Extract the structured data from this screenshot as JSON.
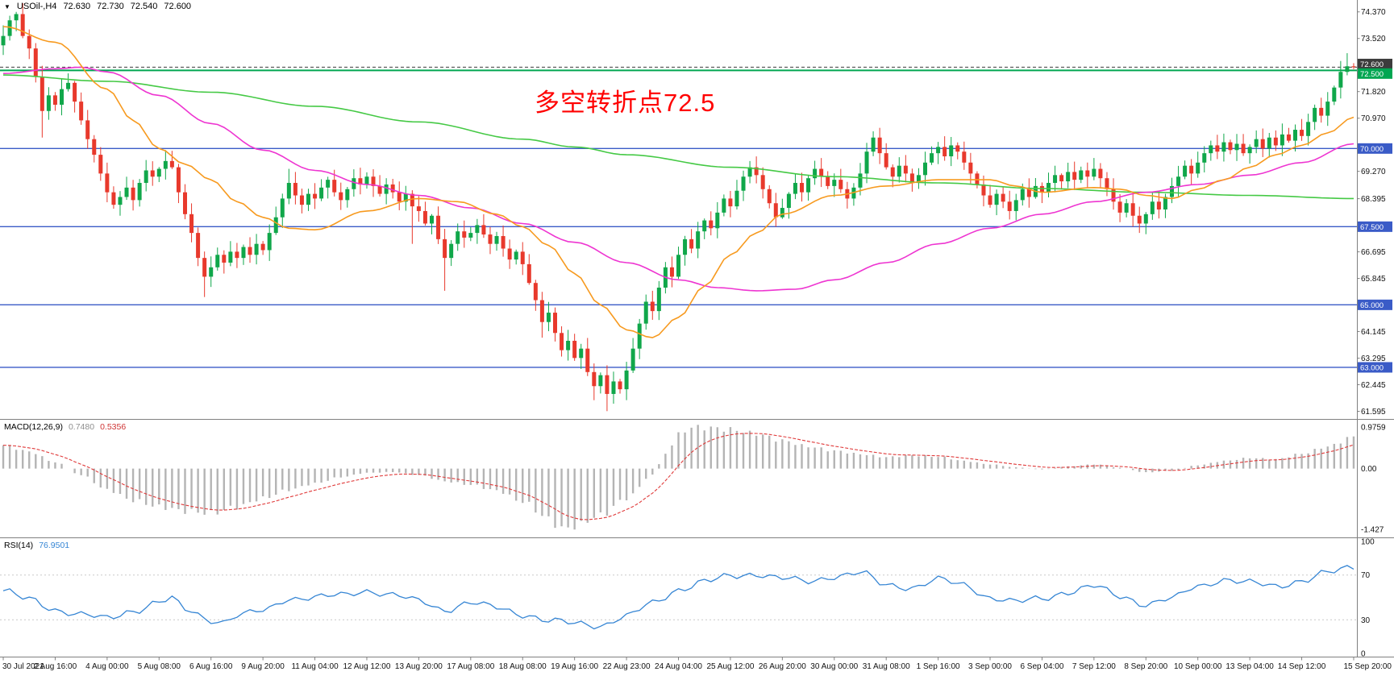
{
  "header": {
    "dropdown_icon": "▼",
    "symbol": "USOil-,H4",
    "open": "72.630",
    "high": "72.730",
    "low": "72.540",
    "close": "72.600"
  },
  "annotation": {
    "text": "多空转折点72.5",
    "color": "#ff0000"
  },
  "colors": {
    "bull": "#10a74a",
    "bear": "#e8392c",
    "macd_hist": "#b4b4b4",
    "macd_signal": "#e03a3a",
    "rsi_line": "#3585d4",
    "hline_blue": "#3a5bc7",
    "hline_green": "#00a651",
    "current_price": "#3c3c3c"
  },
  "price_pane": {
    "scale_labels": [
      {
        "text": "74.370",
        "value": 74.37
      },
      {
        "text": "73.520",
        "value": 73.52
      },
      {
        "text": "71.820",
        "value": 71.82
      },
      {
        "text": "70.970",
        "value": 70.97
      },
      {
        "text": "69.270",
        "value": 69.27
      },
      {
        "text": "68.395",
        "value": 68.395
      },
      {
        "text": "66.695",
        "value": 66.695
      },
      {
        "text": "65.845",
        "value": 65.845
      },
      {
        "text": "64.145",
        "value": 64.145
      },
      {
        "text": "63.295",
        "value": 63.295
      },
      {
        "text": "62.445",
        "value": 62.445
      },
      {
        "text": "61.595",
        "value": 61.595
      }
    ],
    "tags": [
      {
        "text": "72.600",
        "value": 72.6,
        "color": "#3c3c3c",
        "dy": -4
      },
      {
        "text": "72.500",
        "value": 72.5,
        "color": "#00a651",
        "dy": 4
      },
      {
        "text": "70.000",
        "value": 70.0,
        "color": "#3a5bc7",
        "dy": 0
      },
      {
        "text": "67.500",
        "value": 67.5,
        "color": "#3a5bc7",
        "dy": 0
      },
      {
        "text": "65.000",
        "value": 65.0,
        "color": "#3a5bc7",
        "dy": 0
      },
      {
        "text": "63.000",
        "value": 63.0,
        "color": "#3a5bc7",
        "dy": 0
      }
    ]
  },
  "macd_pane": {
    "label": "MACD(12,26,9)",
    "main_value": "0.7480",
    "signal_value": "0.5356",
    "scale_labels": [
      {
        "text": "0.9759",
        "value": 0.9759
      },
      {
        "text": "0.00",
        "value": 0
      },
      {
        "text": "-1.427",
        "value": -1.427
      }
    ]
  },
  "rsi_pane": {
    "label": "RSI(14)",
    "value": "76.9501",
    "levels": [
      70,
      30
    ],
    "scale_labels": [
      {
        "text": "100",
        "value": 100
      },
      {
        "text": "70",
        "value": 70
      },
      {
        "text": "30",
        "value": 30
      },
      {
        "text": "0",
        "value": 0
      }
    ]
  },
  "time_axis": {
    "labels": [
      "30 Jul 2021",
      "2 Aug 16:00",
      "4 Aug 00:00",
      "5 Aug 08:00",
      "6 Aug 16:00",
      "9 Aug 20:00",
      "11 Aug 04:00",
      "12 Aug 12:00",
      "13 Aug 20:00",
      "17 Aug 08:00",
      "18 Aug 08:00",
      "19 Aug 16:00",
      "22 Aug 23:00",
      "24 Aug 04:00",
      "25 Aug 12:00",
      "26 Aug 20:00",
      "30 Aug 00:00",
      "31 Aug 08:00",
      "1 Sep 16:00",
      "3 Sep 00:00",
      "6 Sep 04:00",
      "7 Sep 12:00",
      "8 Sep 20:00",
      "10 Sep 00:00",
      "13 Sep 04:00",
      "14 Sep 12:00",
      "15 Sep 20:00"
    ]
  },
  "chart_data": {
    "type": "candlestick",
    "symbol": "USOil",
    "timeframe": "H4",
    "title": "USOil-,H4 72.630 72.730 72.540 72.600",
    "y_range": [
      61.35,
      74.75
    ],
    "current_price": 72.6,
    "hlines": [
      {
        "value": 72.5,
        "color": "#00a651",
        "width": 2
      },
      {
        "value": 70.0,
        "color": "#3a5bc7",
        "width": 1.4
      },
      {
        "value": 67.5,
        "color": "#3a5bc7",
        "width": 1.4
      },
      {
        "value": 65.0,
        "color": "#3a5bc7",
        "width": 1.4
      },
      {
        "value": 63.0,
        "color": "#3a5bc7",
        "width": 1.4
      }
    ],
    "first_open": 73.3,
    "closes": [
      73.6,
      74.1,
      74.3,
      73.6,
      73.2,
      72.3,
      71.2,
      71.7,
      71.4,
      71.9,
      72.1,
      71.5,
      70.9,
      70.3,
      69.8,
      69.2,
      68.6,
      68.2,
      68.45,
      68.75,
      68.35,
      68.9,
      69.3,
      69.1,
      69.35,
      69.6,
      69.4,
      68.6,
      67.9,
      67.3,
      66.5,
      65.9,
      66.2,
      66.6,
      66.35,
      66.7,
      66.5,
      66.85,
      66.6,
      66.95,
      66.75,
      67.3,
      67.8,
      68.4,
      68.9,
      68.5,
      68.2,
      68.55,
      68.4,
      68.75,
      69.0,
      68.6,
      68.35,
      68.7,
      69.05,
      68.85,
      69.1,
      68.8,
      68.55,
      68.85,
      68.6,
      68.3,
      68.55,
      68.15,
      68.0,
      67.6,
      67.85,
      67.1,
      66.5,
      66.95,
      67.35,
      67.15,
      67.3,
      67.55,
      67.25,
      66.95,
      67.2,
      66.8,
      66.45,
      66.7,
      66.3,
      65.7,
      65.15,
      64.45,
      64.75,
      64.1,
      63.55,
      63.85,
      63.3,
      63.6,
      62.85,
      62.4,
      62.75,
      62.15,
      62.55,
      62.3,
      62.9,
      63.6,
      64.4,
      65.1,
      64.8,
      65.55,
      66.2,
      65.9,
      66.6,
      67.1,
      66.8,
      67.35,
      67.7,
      67.45,
      67.95,
      68.4,
      68.15,
      68.65,
      69.1,
      69.4,
      69.15,
      68.7,
      68.25,
      67.8,
      68.1,
      68.55,
      68.9,
      68.6,
      69.05,
      69.35,
      69.1,
      68.8,
      69.0,
      68.7,
      68.4,
      68.75,
      69.2,
      69.9,
      70.35,
      69.85,
      69.4,
      69.1,
      69.45,
      69.2,
      68.9,
      69.15,
      69.55,
      69.85,
      70.05,
      69.75,
      70.1,
      69.9,
      69.55,
      69.2,
      68.85,
      68.5,
      68.2,
      68.55,
      68.3,
      68.0,
      68.35,
      68.7,
      68.45,
      68.8,
      68.6,
      68.9,
      69.15,
      68.95,
      69.25,
      69.0,
      69.3,
      69.1,
      69.35,
      69.05,
      68.7,
      68.3,
      67.95,
      68.25,
      67.85,
      67.6,
      67.9,
      68.3,
      68.05,
      68.45,
      68.8,
      69.1,
      69.45,
      69.2,
      69.55,
      69.85,
      70.1,
      69.9,
      70.2,
      69.95,
      70.15,
      69.85,
      70.05,
      70.3,
      70.0,
      70.35,
      70.1,
      70.45,
      70.25,
      70.6,
      70.4,
      70.85,
      71.3,
      71.05,
      71.5,
      71.95,
      72.45,
      72.63,
      72.6
    ],
    "wick_overrides": {
      "2": {
        "h": 74.37
      },
      "6": {
        "l": 70.35
      },
      "25": {
        "h": 69.95
      },
      "31": {
        "l": 65.25
      },
      "44": {
        "h": 69.35
      },
      "63": {
        "l": 66.95
      },
      "68": {
        "l": 65.45
      },
      "83": {
        "l": 63.95
      },
      "91": {
        "l": 61.95
      },
      "93": {
        "l": 61.6
      },
      "115": {
        "h": 69.6
      },
      "119": {
        "l": 67.5
      },
      "134": {
        "h": 70.55
      },
      "175": {
        "l": 67.3
      },
      "206": {
        "h": 72.8
      },
      "207": {
        "h": 73.05
      },
      "208": {
        "h": 72.73,
        "l": 72.54
      }
    },
    "moving_averages": [
      {
        "name": "ma-slow-green",
        "color": "#45c945",
        "anchors": [
          [
            0,
            72.35
          ],
          [
            16,
            72.15
          ],
          [
            32,
            71.8
          ],
          [
            48,
            71.35
          ],
          [
            64,
            70.85
          ],
          [
            80,
            70.3
          ],
          [
            88,
            70.05
          ],
          [
            96,
            69.8
          ],
          [
            112,
            69.4
          ],
          [
            128,
            69.1
          ],
          [
            144,
            68.9
          ],
          [
            160,
            68.72
          ],
          [
            176,
            68.6
          ],
          [
            192,
            68.5
          ],
          [
            208,
            68.4
          ]
        ]
      },
      {
        "name": "ma-mid-magenta",
        "color": "#ee35d1",
        "anchors": [
          [
            0,
            72.4
          ],
          [
            8,
            72.55
          ],
          [
            12,
            72.6
          ],
          [
            16,
            72.45
          ],
          [
            24,
            71.7
          ],
          [
            32,
            70.8
          ],
          [
            40,
            69.95
          ],
          [
            48,
            69.3
          ],
          [
            56,
            68.85
          ],
          [
            64,
            68.5
          ],
          [
            72,
            68.1
          ],
          [
            80,
            67.6
          ],
          [
            88,
            67.0
          ],
          [
            96,
            66.35
          ],
          [
            104,
            65.8
          ],
          [
            110,
            65.55
          ],
          [
            116,
            65.45
          ],
          [
            122,
            65.5
          ],
          [
            128,
            65.8
          ],
          [
            136,
            66.35
          ],
          [
            144,
            66.95
          ],
          [
            152,
            67.45
          ],
          [
            160,
            67.9
          ],
          [
            168,
            68.3
          ],
          [
            176,
            68.6
          ],
          [
            184,
            68.85
          ],
          [
            192,
            69.15
          ],
          [
            200,
            69.55
          ],
          [
            208,
            70.15
          ]
        ]
      },
      {
        "name": "ma-fast-orange",
        "color": "#f79a1f",
        "anchors": [
          [
            0,
            73.9
          ],
          [
            8,
            73.4
          ],
          [
            16,
            71.9
          ],
          [
            20,
            70.9
          ],
          [
            24,
            70.0
          ],
          [
            28,
            69.5
          ],
          [
            32,
            69.0
          ],
          [
            36,
            68.3
          ],
          [
            40,
            67.8
          ],
          [
            44,
            67.45
          ],
          [
            48,
            67.4
          ],
          [
            56,
            68.0
          ],
          [
            64,
            68.4
          ],
          [
            70,
            68.3
          ],
          [
            76,
            67.9
          ],
          [
            80,
            67.5
          ],
          [
            84,
            66.9
          ],
          [
            88,
            66.0
          ],
          [
            92,
            65.0
          ],
          [
            96,
            64.2
          ],
          [
            100,
            63.95
          ],
          [
            104,
            64.6
          ],
          [
            108,
            65.6
          ],
          [
            112,
            66.6
          ],
          [
            116,
            67.3
          ],
          [
            120,
            67.9
          ],
          [
            128,
            68.5
          ],
          [
            136,
            68.8
          ],
          [
            144,
            69.0
          ],
          [
            152,
            69.0
          ],
          [
            156,
            68.8
          ],
          [
            160,
            68.6
          ],
          [
            168,
            68.75
          ],
          [
            172,
            68.7
          ],
          [
            176,
            68.5
          ],
          [
            180,
            68.4
          ],
          [
            184,
            68.7
          ],
          [
            188,
            69.0
          ],
          [
            192,
            69.4
          ],
          [
            196,
            69.8
          ],
          [
            200,
            70.1
          ],
          [
            204,
            70.5
          ],
          [
            208,
            71.0
          ]
        ]
      }
    ],
    "macd": {
      "range": [
        -1.62,
        1.15
      ],
      "current": 0.748,
      "signal_current": 0.5356,
      "anchors": [
        [
          0,
          0.55
        ],
        [
          4,
          0.4
        ],
        [
          8,
          0.15
        ],
        [
          12,
          -0.15
        ],
        [
          16,
          -0.5
        ],
        [
          20,
          -0.75
        ],
        [
          24,
          -0.9
        ],
        [
          28,
          -1.0
        ],
        [
          32,
          -1.05
        ],
        [
          36,
          -0.9
        ],
        [
          40,
          -0.7
        ],
        [
          44,
          -0.5
        ],
        [
          48,
          -0.35
        ],
        [
          52,
          -0.2
        ],
        [
          56,
          -0.1
        ],
        [
          60,
          -0.08
        ],
        [
          64,
          -0.15
        ],
        [
          68,
          -0.3
        ],
        [
          72,
          -0.38
        ],
        [
          76,
          -0.52
        ],
        [
          80,
          -0.78
        ],
        [
          84,
          -1.18
        ],
        [
          86,
          -1.427
        ],
        [
          88,
          -1.36
        ],
        [
          92,
          -1.1
        ],
        [
          96,
          -0.7
        ],
        [
          100,
          -0.15
        ],
        [
          102,
          0.35
        ],
        [
          104,
          0.8
        ],
        [
          106,
          0.9759
        ],
        [
          109,
          0.96
        ],
        [
          112,
          0.92
        ],
        [
          116,
          0.82
        ],
        [
          120,
          0.66
        ],
        [
          124,
          0.52
        ],
        [
          128,
          0.42
        ],
        [
          132,
          0.34
        ],
        [
          136,
          0.27
        ],
        [
          140,
          0.31
        ],
        [
          144,
          0.28
        ],
        [
          148,
          0.18
        ],
        [
          152,
          0.1
        ],
        [
          156,
          0.03
        ],
        [
          160,
          -0.02
        ],
        [
          164,
          0.05
        ],
        [
          168,
          0.1
        ],
        [
          172,
          0.02
        ],
        [
          176,
          -0.09
        ],
        [
          180,
          -0.05
        ],
        [
          184,
          0.08
        ],
        [
          188,
          0.18
        ],
        [
          192,
          0.25
        ],
        [
          196,
          0.22
        ],
        [
          200,
          0.35
        ],
        [
          204,
          0.52
        ],
        [
          208,
          0.748
        ]
      ]
    },
    "rsi": {
      "range": [
        0,
        100
      ],
      "current": 76.9501,
      "anchors": [
        [
          0,
          56
        ],
        [
          4,
          48
        ],
        [
          8,
          39
        ],
        [
          12,
          35
        ],
        [
          16,
          31
        ],
        [
          20,
          38
        ],
        [
          24,
          46
        ],
        [
          26,
          49
        ],
        [
          28,
          39
        ],
        [
          32,
          30
        ],
        [
          34,
          28
        ],
        [
          36,
          34
        ],
        [
          40,
          38
        ],
        [
          44,
          49
        ],
        [
          48,
          50
        ],
        [
          52,
          52
        ],
        [
          56,
          56
        ],
        [
          60,
          52
        ],
        [
          64,
          47
        ],
        [
          68,
          39
        ],
        [
          72,
          45
        ],
        [
          76,
          41
        ],
        [
          80,
          35
        ],
        [
          84,
          29
        ],
        [
          88,
          27
        ],
        [
          92,
          25
        ],
        [
          96,
          33
        ],
        [
          100,
          45
        ],
        [
          104,
          57
        ],
        [
          108,
          64
        ],
        [
          112,
          69
        ],
        [
          116,
          71
        ],
        [
          120,
          67
        ],
        [
          124,
          64
        ],
        [
          128,
          69
        ],
        [
          132,
          72
        ],
        [
          136,
          61
        ],
        [
          140,
          59
        ],
        [
          144,
          66
        ],
        [
          148,
          61
        ],
        [
          152,
          50
        ],
        [
          156,
          46
        ],
        [
          160,
          49
        ],
        [
          164,
          55
        ],
        [
          168,
          60
        ],
        [
          172,
          51
        ],
        [
          176,
          44
        ],
        [
          180,
          49
        ],
        [
          184,
          60
        ],
        [
          188,
          66
        ],
        [
          192,
          63
        ],
        [
          196,
          60
        ],
        [
          200,
          65
        ],
        [
          204,
          72
        ],
        [
          208,
          77
        ]
      ]
    }
  }
}
